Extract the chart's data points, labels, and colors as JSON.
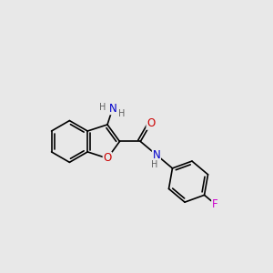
{
  "background_color": "#e8e8e8",
  "bond_color": "#000000",
  "bond_width": 1.2,
  "atom_colors": {
    "N": "#0000cc",
    "O": "#cc0000",
    "F": "#cc00cc",
    "H": "#606060"
  },
  "fig_size": [
    3.0,
    3.0
  ],
  "dpi": 100,
  "xlim": [
    -2.4,
    3.0
  ],
  "ylim": [
    -1.4,
    1.6
  ]
}
